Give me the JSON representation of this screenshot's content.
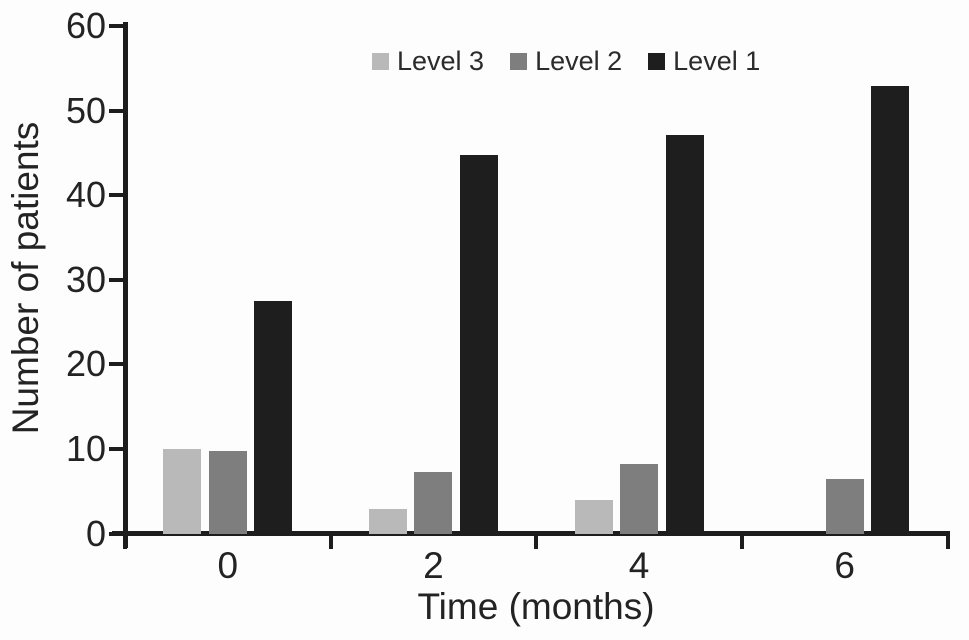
{
  "chart_data": {
    "type": "bar",
    "title": "",
    "xlabel": "Time (months)",
    "ylabel": "Number of patients",
    "categories": [
      "0",
      "2",
      "4",
      "6"
    ],
    "series": [
      {
        "name": "Level 3",
        "color": "#b9b9b9",
        "values": [
          10,
          3,
          4,
          0
        ]
      },
      {
        "name": "Level 2",
        "color": "#7e7e7e",
        "values": [
          9.8,
          7.3,
          8.3,
          6.5
        ]
      },
      {
        "name": "Level 1",
        "color": "#1e1e1e",
        "values": [
          27.5,
          44.8,
          47.2,
          53
        ]
      }
    ],
    "ylim": [
      0,
      60
    ],
    "yticks": [
      0,
      10,
      20,
      30,
      40,
      50,
      60
    ],
    "legend_position": "top",
    "grid": false,
    "axis_color": "#1d1d1d",
    "text_color": "#232323",
    "background_color": "#fdfdfd"
  }
}
